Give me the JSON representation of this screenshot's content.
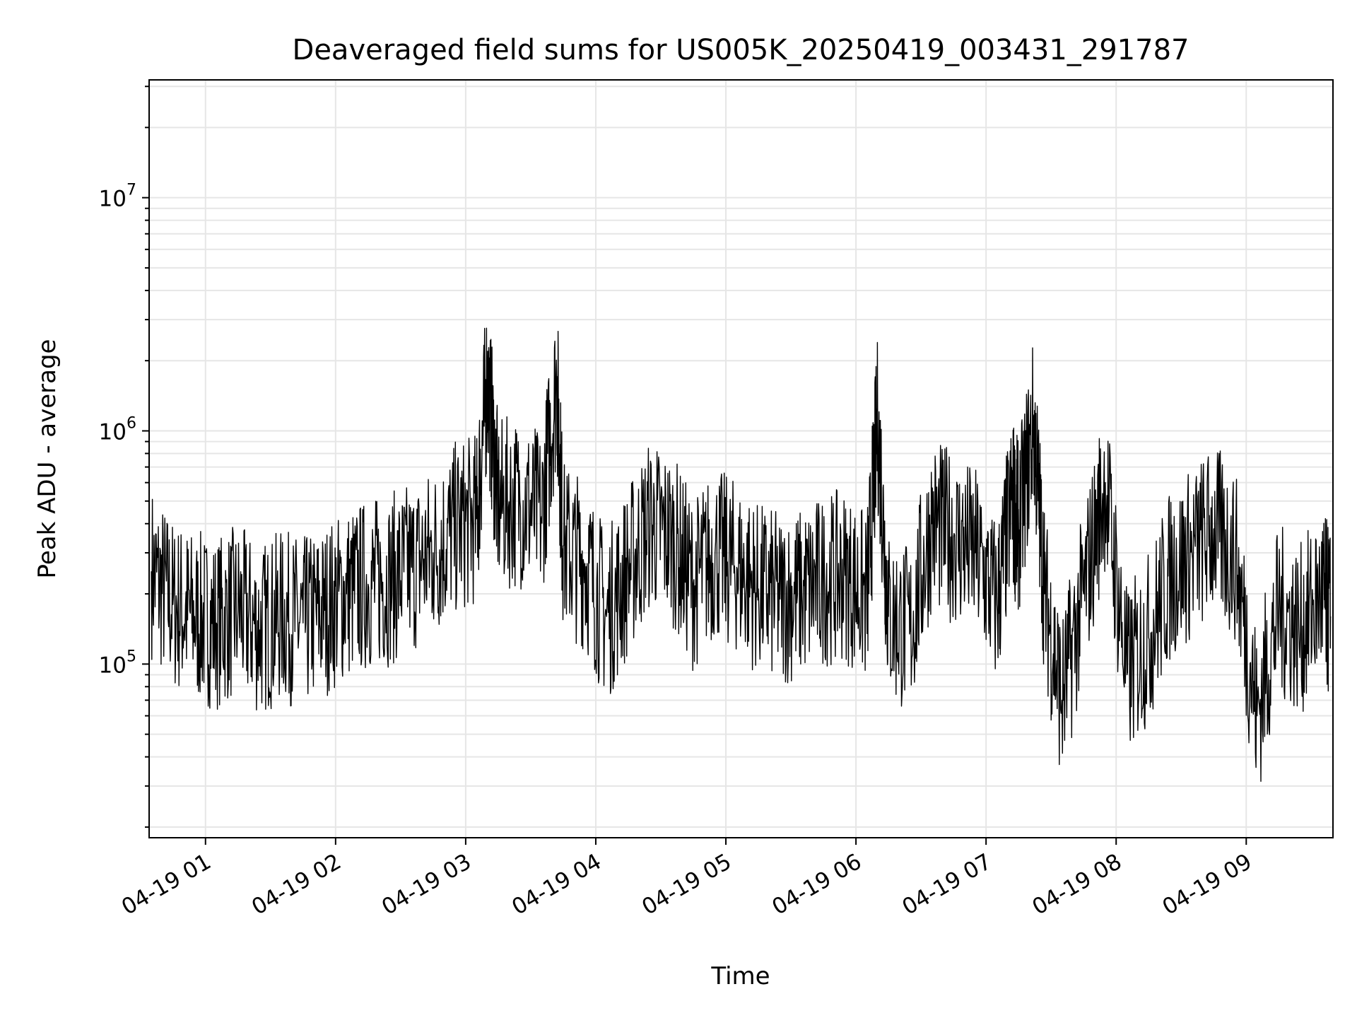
{
  "chart_data": {
    "type": "line",
    "title": "Deaveraged field sums for US005K_20250419_003431_291787",
    "xlabel": "Time",
    "ylabel": "Peak ADU - average",
    "yscale": "log",
    "ylim": [
      18000,
      32000000
    ],
    "xlim": [
      "2025-04-19 00:34",
      "2025-04-19 09:40"
    ],
    "grid": true,
    "line_color": "#000000",
    "x_ticks": [
      "04-19 01",
      "04-19 02",
      "04-19 03",
      "04-19 04",
      "04-19 05",
      "04-19 06",
      "04-19 07",
      "04-19 08",
      "04-19 09"
    ],
    "y_ticks": [
      {
        "base": "10",
        "exp": "5",
        "value": 100000
      },
      {
        "base": "10",
        "exp": "6",
        "value": 1000000
      },
      {
        "base": "10",
        "exp": "7",
        "value": 10000000
      }
    ],
    "series": [
      {
        "values_note_free": true,
        "x": [
          "2025-04-19 00:35",
          "2025-04-19 00:45",
          "2025-04-19 00:55",
          "2025-04-19 01:05",
          "2025-04-19 01:15",
          "2025-04-19 01:25",
          "2025-04-19 01:35",
          "2025-04-19 01:45",
          "2025-04-19 01:55",
          "2025-04-19 02:05",
          "2025-04-19 02:15",
          "2025-04-19 02:25",
          "2025-04-19 02:35",
          "2025-04-19 02:45",
          "2025-04-19 02:55",
          "2025-04-19 03:05",
          "2025-04-19 03:10",
          "2025-04-19 03:15",
          "2025-04-19 03:25",
          "2025-04-19 03:35",
          "2025-04-19 03:42",
          "2025-04-19 03:45",
          "2025-04-19 03:55",
          "2025-04-19 04:05",
          "2025-04-19 04:15",
          "2025-04-19 04:25",
          "2025-04-19 04:35",
          "2025-04-19 04:45",
          "2025-04-19 04:55",
          "2025-04-19 05:05",
          "2025-04-19 05:15",
          "2025-04-19 05:25",
          "2025-04-19 05:35",
          "2025-04-19 05:45",
          "2025-04-19 05:55",
          "2025-04-19 06:05",
          "2025-04-19 06:10",
          "2025-04-19 06:15",
          "2025-04-19 06:25",
          "2025-04-19 06:35",
          "2025-04-19 06:45",
          "2025-04-19 06:55",
          "2025-04-19 07:05",
          "2025-04-19 07:12",
          "2025-04-19 07:15",
          "2025-04-19 07:22",
          "2025-04-19 07:27",
          "2025-04-19 07:35",
          "2025-04-19 07:45",
          "2025-04-19 07:55",
          "2025-04-19 08:05",
          "2025-04-19 08:15",
          "2025-04-19 08:25",
          "2025-04-19 08:35",
          "2025-04-19 08:45",
          "2025-04-19 08:55",
          "2025-04-19 09:05",
          "2025-04-19 09:15",
          "2025-04-19 09:25",
          "2025-04-19 09:35",
          "2025-04-19 09:39"
        ],
        "values": [
          250000,
          180000,
          160000,
          150000,
          170000,
          140000,
          160000,
          150000,
          170000,
          200000,
          220000,
          230000,
          260000,
          300000,
          380000,
          420000,
          1700000,
          480000,
          500000,
          430000,
          1650000,
          320000,
          270000,
          160000,
          250000,
          400000,
          350000,
          220000,
          300000,
          260000,
          210000,
          190000,
          200000,
          230000,
          240000,
          190000,
          1100000,
          160000,
          140000,
          400000,
          350000,
          300000,
          180000,
          500000,
          380000,
          1100000,
          200000,
          70000,
          200000,
          600000,
          90000,
          130000,
          240000,
          300000,
          380000,
          290000,
          60000,
          170000,
          140000,
          200000,
          160000
        ]
      }
    ]
  }
}
